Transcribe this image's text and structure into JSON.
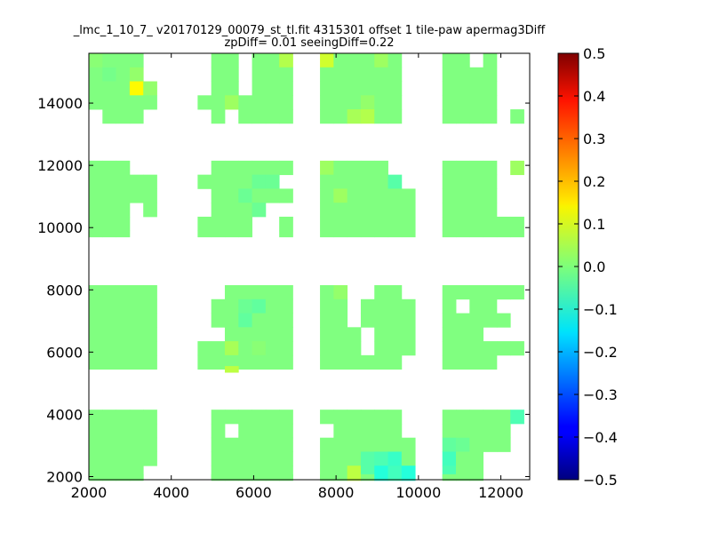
{
  "chart_data": {
    "type": "heatmap",
    "title": "_lmc_1_10_7_ v20170129_00079_st_tl.fit 4315301 offset 1 tile-paw apermag3Diff",
    "subtitle": "zpDiff= 0.01 seeingDiff=0.22",
    "xlabel": "",
    "ylabel": "",
    "xlim": [
      2000,
      12700
    ],
    "ylim": [
      1900,
      15600
    ],
    "x_ticks": [
      2000,
      4000,
      6000,
      8000,
      10000,
      12000
    ],
    "y_ticks": [
      2000,
      4000,
      6000,
      8000,
      10000,
      12000,
      14000
    ],
    "colormap": "jet",
    "colorbar": {
      "vmin": -0.5,
      "vmax": 0.5,
      "ticks": [
        "0.5",
        "0.4",
        "0.3",
        "0.2",
        "0.1",
        "0.0",
        "−0.1",
        "−0.2",
        "−0.3",
        "−0.4",
        "−0.5"
      ]
    },
    "grid": false,
    "cell_size": [
      330,
      450
    ],
    "x_centers": [
      2165,
      2495,
      2825,
      3155,
      3485,
      4805,
      5135,
      5465,
      5795,
      6125,
      6455,
      6785,
      7775,
      8105,
      8435,
      8765,
      9095,
      9425,
      9755,
      10745,
      11075,
      11405,
      11735,
      12065,
      12395
    ],
    "row_groups": [
      {
        "rows": [
          {
            "y": 15375,
            "cols": [
              0,
              1,
              2,
              3,
              6,
              7,
              9,
              10,
              11,
              12,
              13,
              14,
              15,
              16,
              17,
              19,
              20,
              22
            ],
            "values": {
              "0": 0.01,
              "12": 0.08,
              "11": 0.05,
              "16": 0.03
            }
          },
          {
            "y": 14925,
            "cols": [
              0,
              1,
              2,
              3,
              6,
              7,
              9,
              10,
              11,
              12,
              13,
              14,
              15,
              16,
              17,
              19,
              20,
              21,
              22
            ],
            "values": {
              "1": -0.01,
              "3": 0.02
            }
          },
          {
            "y": 14475,
            "cols": [
              0,
              1,
              2,
              3,
              4,
              6,
              7,
              9,
              10,
              11,
              12,
              13,
              14,
              15,
              16,
              17,
              19,
              20,
              21,
              22
            ],
            "values": {
              "3": 0.13,
              "4": 0.02
            }
          },
          {
            "y": 14025,
            "cols": [
              0,
              1,
              2,
              3,
              4,
              5,
              6,
              7,
              8,
              9,
              10,
              11,
              12,
              13,
              14,
              15,
              16,
              17,
              19,
              20,
              21,
              22
            ],
            "values": {
              "7": 0.03,
              "15": 0.02
            }
          },
          {
            "y": 13575,
            "cols": [
              1,
              2,
              3,
              6,
              8,
              9,
              10,
              11,
              12,
              13,
              14,
              15,
              16,
              17,
              19,
              20,
              21,
              22,
              24
            ],
            "values": {
              "14": 0.04,
              "15": 0.05
            }
          }
        ]
      },
      {
        "rows": [
          {
            "y": 11925,
            "cols": [
              0,
              1,
              2,
              6,
              7,
              8,
              9,
              10,
              11,
              12,
              13,
              14,
              15,
              16,
              19,
              20,
              21,
              22,
              24
            ],
            "values": {
              "12": 0.03,
              "24": 0.03
            }
          },
          {
            "y": 11475,
            "cols": [
              0,
              1,
              2,
              3,
              4,
              5,
              6,
              7,
              8,
              9,
              10,
              12,
              13,
              14,
              15,
              16,
              17,
              19,
              20,
              21,
              22
            ],
            "values": {
              "17": -0.04,
              "9": -0.02,
              "10": -0.02
            }
          },
          {
            "y": 11025,
            "cols": [
              0,
              1,
              2,
              3,
              4,
              6,
              7,
              8,
              9,
              10,
              11,
              12,
              13,
              14,
              15,
              16,
              17,
              18,
              19,
              20,
              21,
              22
            ],
            "values": {
              "8": -0.02,
              "13": 0.03
            }
          },
          {
            "y": 10575,
            "cols": [
              0,
              1,
              2,
              4,
              6,
              7,
              8,
              9,
              12,
              13,
              14,
              15,
              16,
              17,
              18,
              19,
              20,
              21,
              22
            ],
            "values": {
              "9": -0.02
            }
          },
          {
            "y": 10125,
            "cols": [
              0,
              1,
              2,
              5,
              6,
              7,
              8,
              11,
              12,
              13,
              14,
              15,
              16,
              17,
              18,
              19,
              20,
              21,
              22,
              23,
              24
            ],
            "values": {}
          },
          {
            "y": 9800,
            "cols": [
              0,
              1,
              2,
              5,
              6,
              7,
              8,
              11,
              12,
              13,
              14,
              15,
              16,
              17,
              18,
              19,
              20,
              21,
              22,
              23,
              24
            ],
            "values": {}
          }
        ]
      },
      {
        "rows": [
          {
            "y": 7925,
            "cols": [
              0,
              1,
              2,
              3,
              4,
              7,
              8,
              9,
              10,
              11,
              12,
              13,
              16,
              17,
              19,
              20,
              21,
              22,
              23,
              24
            ],
            "values": {
              "13": 0.02
            }
          },
          {
            "y": 7475,
            "cols": [
              0,
              1,
              2,
              3,
              4,
              6,
              7,
              8,
              9,
              10,
              11,
              12,
              13,
              15,
              16,
              17,
              18,
              19,
              21,
              22
            ],
            "values": {
              "8": -0.02,
              "9": -0.03
            }
          },
          {
            "y": 7025,
            "cols": [
              0,
              1,
              2,
              3,
              4,
              6,
              7,
              8,
              9,
              10,
              11,
              12,
              13,
              15,
              16,
              17,
              18,
              19,
              20,
              21,
              22,
              23
            ],
            "values": {
              "8": -0.03
            }
          },
          {
            "y": 6575,
            "cols": [
              0,
              1,
              2,
              3,
              4,
              7,
              8,
              9,
              10,
              11,
              12,
              13,
              14,
              16,
              17,
              18,
              19,
              20,
              21
            ],
            "values": {}
          },
          {
            "y": 6125,
            "cols": [
              0,
              1,
              2,
              3,
              4,
              5,
              6,
              7,
              8,
              9,
              10,
              11,
              12,
              13,
              14,
              16,
              17,
              18,
              19,
              20,
              21,
              22,
              23,
              24
            ],
            "values": {
              "7": 0.04,
              "9": 0.01
            }
          },
          {
            "y": 5675,
            "cols": [
              0,
              1,
              2,
              3,
              4,
              5,
              6,
              7,
              8,
              9,
              10,
              11,
              12,
              13,
              14,
              15,
              16,
              17,
              19,
              20,
              21,
              22
            ],
            "values": {}
          },
          {
            "y": 5450,
            "cols": [
              7
            ],
            "values": {
              "7": 0.06
            }
          }
        ]
      },
      {
        "rows": [
          {
            "y": 3925,
            "cols": [
              0,
              1,
              2,
              3,
              4,
              6,
              7,
              8,
              9,
              10,
              11,
              12,
              13,
              14,
              15,
              16,
              17,
              19,
              20,
              21,
              22,
              23,
              24
            ],
            "values": {
              "24": -0.05
            }
          },
          {
            "y": 3475,
            "cols": [
              0,
              1,
              2,
              3,
              4,
              6,
              8,
              9,
              10,
              11,
              13,
              14,
              15,
              16,
              17,
              19,
              20,
              21,
              22,
              23
            ],
            "values": {}
          },
          {
            "y": 3025,
            "cols": [
              0,
              1,
              2,
              3,
              4,
              6,
              7,
              8,
              9,
              10,
              11,
              12,
              13,
              14,
              15,
              16,
              17,
              18,
              19,
              20,
              21,
              22,
              23
            ],
            "values": {
              "19": -0.03,
              "20": -0.02
            }
          },
          {
            "y": 2575,
            "cols": [
              0,
              1,
              2,
              3,
              4,
              6,
              7,
              8,
              9,
              10,
              11,
              12,
              13,
              14,
              15,
              16,
              17,
              18,
              19,
              20,
              21
            ],
            "values": {
              "16": -0.05,
              "17": -0.07,
              "15": -0.04,
              "19": -0.06
            }
          },
          {
            "y": 2125,
            "cols": [
              0,
              1,
              2,
              3,
              6,
              7,
              8,
              9,
              10,
              11,
              12,
              13,
              14,
              15,
              16,
              17,
              18,
              19,
              20,
              21
            ],
            "values": {
              "14": 0.06,
              "16": -0.09,
              "17": -0.06,
              "18": -0.09,
              "15": -0.04,
              "19": -0.05
            }
          },
          {
            "y": 1975,
            "cols": [
              0,
              1,
              2,
              3,
              6,
              7,
              8,
              9,
              10,
              11,
              12,
              13,
              14,
              15,
              16,
              17,
              18,
              19,
              20,
              21
            ],
            "values": {
              "14": 0.06,
              "16": -0.09,
              "17": -0.06,
              "18": -0.09
            }
          }
        ]
      }
    ],
    "default_value": 0.0
  }
}
